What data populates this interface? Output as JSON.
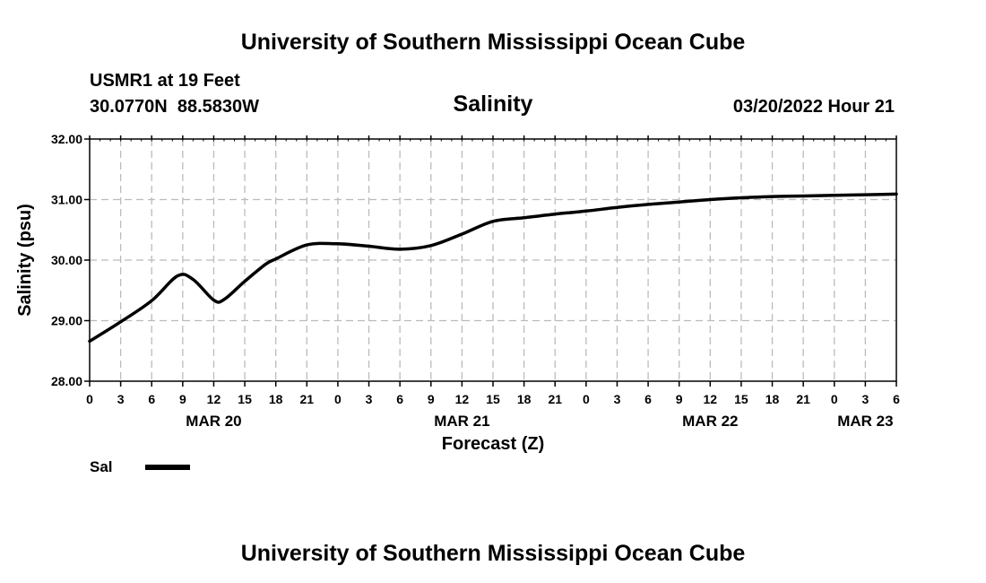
{
  "header": {
    "title": "University of Southern Mississippi Ocean Cube",
    "station": "USMR1 at 19 Feet",
    "coords": "30.0770N  88.5830W",
    "datetime": "03/20/2022 Hour 21"
  },
  "footer": {
    "title": "University of Southern Mississippi Ocean Cube"
  },
  "colors": {
    "line": "#000000",
    "grid": "#bbbbbb",
    "axis": "#000000"
  },
  "chart_data": {
    "type": "line",
    "title": "Salinity",
    "xlabel": "Forecast (Z)",
    "ylabel": "Salinity (psu)",
    "ylim": [
      28.0,
      32.0
    ],
    "xlim": [
      0,
      78
    ],
    "grid": true,
    "y_ticks": [
      28.0,
      29.0,
      30.0,
      31.0,
      32.0
    ],
    "y_tick_labels": [
      "28.00",
      "29.00",
      "30.00",
      "31.00",
      "32.00"
    ],
    "x_ticks": [
      0,
      3,
      6,
      9,
      12,
      15,
      18,
      21,
      24,
      27,
      30,
      33,
      36,
      39,
      42,
      45,
      48,
      51,
      54,
      57,
      60,
      63,
      66,
      69,
      72,
      75,
      78
    ],
    "x_tick_labels": [
      "0",
      "3",
      "6",
      "9",
      "12",
      "15",
      "18",
      "21",
      "0",
      "3",
      "6",
      "9",
      "12",
      "15",
      "18",
      "21",
      "0",
      "3",
      "6",
      "9",
      "12",
      "15",
      "18",
      "21",
      "0",
      "3",
      "6"
    ],
    "date_labels": [
      {
        "text": "MAR 20",
        "x": 12
      },
      {
        "text": "MAR 21",
        "x": 36
      },
      {
        "text": "MAR 22",
        "x": 60
      },
      {
        "text": "MAR 23",
        "x": 75
      }
    ],
    "legend": {
      "label": "Sal",
      "position": "bottom-left"
    },
    "series": [
      {
        "name": "Sal",
        "x": [
          0,
          3,
          6,
          8.5,
          10,
          12,
          13,
          15,
          17,
          18,
          21,
          24,
          27,
          30,
          33,
          36,
          39,
          42,
          45,
          48,
          51,
          54,
          57,
          60,
          63,
          66,
          69,
          72,
          75,
          78
        ],
        "values": [
          28.66,
          28.98,
          29.33,
          29.74,
          29.68,
          29.34,
          29.35,
          29.65,
          29.93,
          30.02,
          30.25,
          30.27,
          30.23,
          30.18,
          30.24,
          30.43,
          30.64,
          30.7,
          30.76,
          30.81,
          30.87,
          30.92,
          30.96,
          31.0,
          31.03,
          31.05,
          31.06,
          31.07,
          31.08,
          31.09
        ]
      }
    ]
  }
}
